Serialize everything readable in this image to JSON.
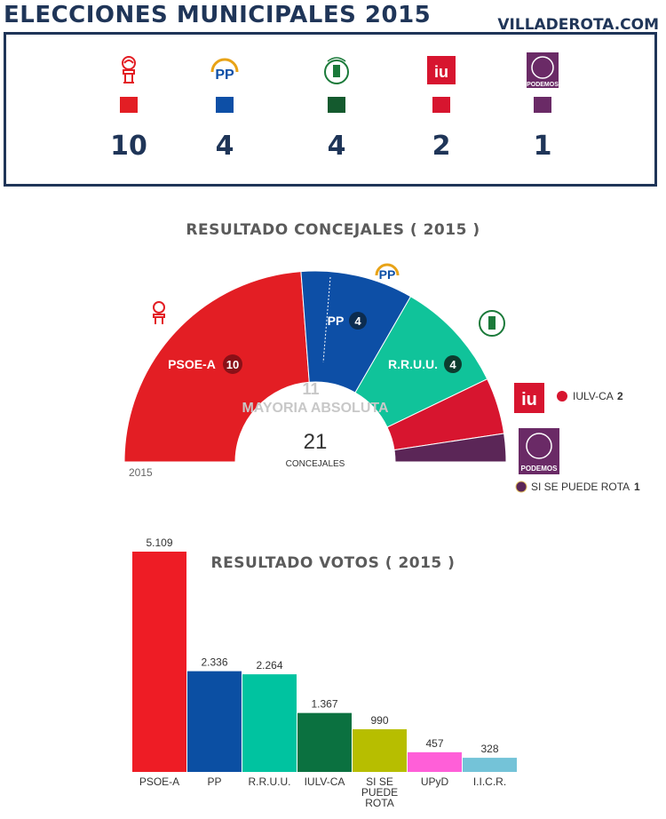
{
  "header": {
    "title": "ELECCIONES MUNICIPALES    2015",
    "site": "VILLADEROTA.COM"
  },
  "seats_panel": {
    "parties": [
      {
        "name": "PSOE-A",
        "logo": "psoe-rose-logo",
        "color": "#e31e24",
        "seats": "10"
      },
      {
        "name": "PP",
        "logo": "pp-logo",
        "color": "#0d4fa6",
        "seats": "4"
      },
      {
        "name": "R.R.U.U.",
        "logo": "reteros-unidos-logo",
        "color": "#145a2e",
        "seats": "4"
      },
      {
        "name": "IULV-CA",
        "logo": "iu-logo",
        "color": "#d7152f",
        "seats": "2"
      },
      {
        "name": "PODEMOS",
        "logo": "podemos-logo",
        "color": "#6a2a66",
        "seats": "1"
      }
    ]
  },
  "chart_data": [
    {
      "type": "pie",
      "title": "RESULTADO CONCEJALES ( 2015 )",
      "subtitle": "2015",
      "categories": [
        "PSOE-A",
        "PP",
        "R.R.U.U.",
        "IULV-CA",
        "SI SE PUEDE ROTA"
      ],
      "values": [
        10,
        4,
        4,
        2,
        1
      ],
      "colors": [
        "#e31e24",
        "#0d4fa6",
        "#10c39a",
        "#d7152f",
        "#5b2657"
      ],
      "labels": [
        "PSOE-A",
        "PP",
        "R.R.U.U.",
        "",
        ""
      ],
      "legend": [
        {
          "name": "IULV-CA",
          "value": "2",
          "color": "#d7152f"
        },
        {
          "name": "SI SE PUEDE ROTA",
          "value": "1",
          "color": "#5b2657"
        }
      ],
      "majority_value": "11",
      "majority_label": "MAYORIA ABSOLUTA",
      "total": "21",
      "total_label": "CONCEJALES",
      "shape": "semicircle donut"
    },
    {
      "type": "bar",
      "title": "RESULTADO VOTOS ( 2015 )",
      "categories": [
        "PSOE-A",
        "PP",
        "R.R.U.U.",
        "IULV-CA",
        "SI SE PUEDE ROTA",
        "UPyD",
        "I.I.C.R."
      ],
      "category_lines": [
        [
          "PSOE-A"
        ],
        [
          "PP"
        ],
        [
          "R.R.U.U."
        ],
        [
          "IULV-CA"
        ],
        [
          "SI SE",
          "PUEDE",
          "ROTA"
        ],
        [
          "UPyD"
        ],
        [
          "I.I.C.R."
        ]
      ],
      "values": [
        5109,
        2336,
        2264,
        1367,
        990,
        457,
        328
      ],
      "value_labels": [
        "5.109",
        "2.336",
        "2.264",
        "1.367",
        "990",
        "457",
        "328"
      ],
      "colors": [
        "#ee1c25",
        "#0b4fa3",
        "#00c3a0",
        "#0b7140",
        "#b7be00",
        "#ff5fd8",
        "#74c3d8"
      ],
      "ylim": [
        0,
        5109
      ]
    }
  ]
}
